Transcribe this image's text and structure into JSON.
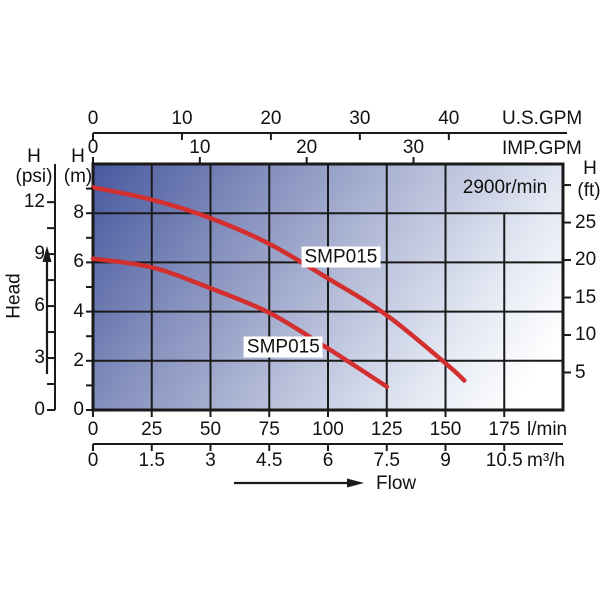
{
  "chart_data": {
    "type": "line",
    "rpm_label": "2900r/min",
    "xlim_lmin": [
      0,
      200
    ],
    "ylim_m": [
      0,
      10
    ],
    "grid_lmin": [
      25,
      50,
      75,
      100,
      125,
      150,
      175
    ],
    "grid_m": [
      2,
      4,
      6,
      8
    ],
    "flow_axes": [
      {
        "id": "us_gpm",
        "unit": "U.S.GPM",
        "ticks": [
          0,
          10,
          20,
          30,
          40
        ],
        "lmin_per_unit": 3.7854
      },
      {
        "id": "imp_gpm",
        "unit": "IMP.GPM",
        "ticks": [
          0,
          10,
          20,
          30
        ],
        "lmin_per_unit": 4.5461
      },
      {
        "id": "lmin",
        "unit": "l/min",
        "ticks": [
          0,
          25,
          50,
          75,
          100,
          125,
          150,
          175
        ],
        "lmin_per_unit": 1
      },
      {
        "id": "m3h",
        "unit": "m³/h",
        "ticks": [
          0,
          1.5,
          3,
          4.5,
          6,
          7.5,
          9,
          10.5
        ],
        "lmin_per_unit": 16.6667
      }
    ],
    "head_axes": [
      {
        "id": "psi",
        "title": "H",
        "unit": "(psi)",
        "ticks": [
          0,
          1.5,
          3,
          4.5,
          6,
          7.5,
          9,
          10.5,
          12
        ],
        "labeled": [
          0,
          3,
          6,
          9,
          12
        ],
        "m_per_unit": 0.7041
      },
      {
        "id": "m",
        "title": "H",
        "unit": "(m)",
        "ticks": [
          0,
          1,
          2,
          3,
          4,
          5,
          6,
          7,
          8,
          9
        ],
        "labeled": [
          0,
          2,
          4,
          6,
          8
        ],
        "m_per_unit": 1
      },
      {
        "id": "ft",
        "title": "H",
        "unit": "(ft)",
        "ticks": [
          5,
          10,
          15,
          20,
          25,
          30
        ],
        "labeled": [
          5,
          10,
          15,
          20,
          25
        ],
        "m_per_unit": 0.3048
      }
    ],
    "series": [
      {
        "name": "SMP015",
        "points_lmin_m": [
          [
            0,
            9.05
          ],
          [
            25,
            8.55
          ],
          [
            50,
            7.8
          ],
          [
            75,
            6.75
          ],
          [
            100,
            5.35
          ],
          [
            125,
            3.85
          ],
          [
            150,
            1.9
          ],
          [
            158,
            1.2
          ]
        ],
        "label_at_lmin_m": [
          105.5,
          6.2
        ]
      },
      {
        "name": "SMP015",
        "points_lmin_m": [
          [
            0,
            6.15
          ],
          [
            25,
            5.8
          ],
          [
            50,
            4.95
          ],
          [
            75,
            3.95
          ],
          [
            100,
            2.5
          ],
          [
            125,
            0.95
          ]
        ],
        "label_at_lmin_m": [
          81,
          2.55
        ]
      }
    ],
    "direction_labels": {
      "head": "Head",
      "flow": "Flow"
    }
  },
  "colors": {
    "curve": "#d32f2f",
    "line": "#1a1a1a",
    "text": "#111111",
    "plot_gradient": [
      "#47589e",
      "#8893bf",
      "#e2e7f2",
      "#ffffff"
    ]
  }
}
